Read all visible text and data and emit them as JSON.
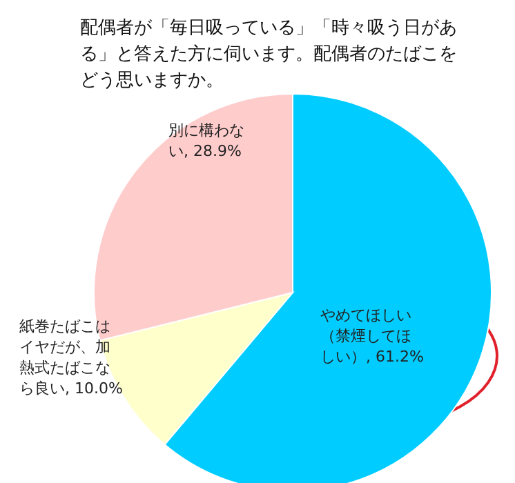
{
  "chart_data": {
    "type": "pie",
    "title": "配偶者が「毎日吸っている」「時々吸う日がある」と答えた方に伺います。配偶者のたばこをどう思いますか。",
    "categories": [
      "やめてほしい（禁煙してほしい）",
      "紙巻たばこはイヤだが、加熱式たばこなら良い",
      "別に構わない"
    ],
    "value_labels": [
      "61.2%",
      "10.0%",
      "28.9%"
    ],
    "values": [
      61.2,
      10.0,
      28.9
    ],
    "colors": [
      "#00ccff",
      "#ffffcc",
      "#ffcccc"
    ]
  }
}
